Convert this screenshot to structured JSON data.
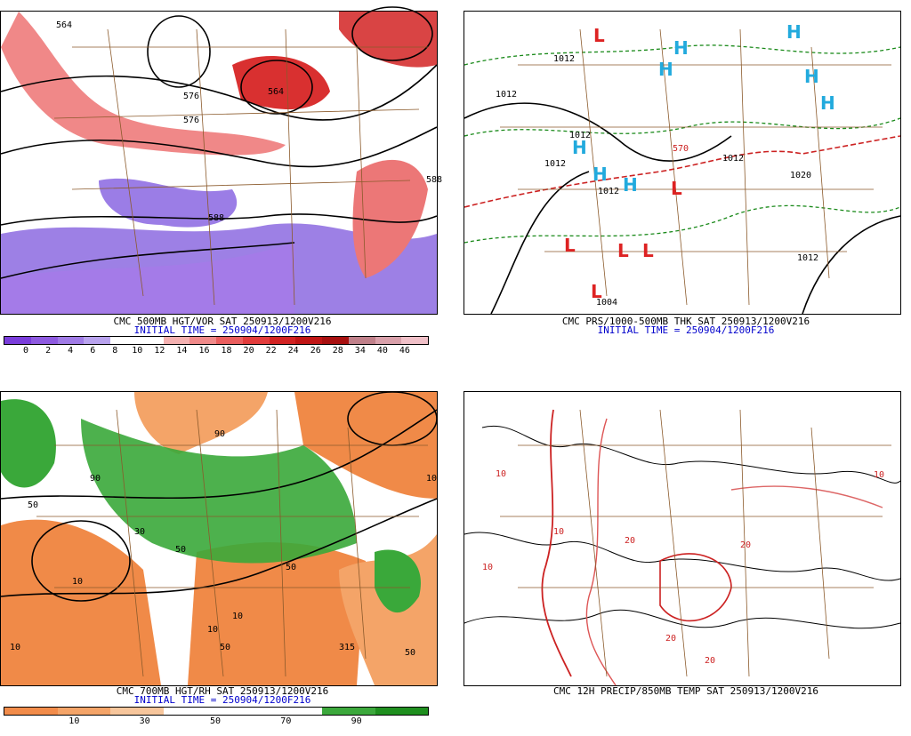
{
  "panels": [
    {
      "title": "CMC 500MB HGT/VOR SAT 250913/1200V216",
      "initial": "INITIAL TIME = 250904/1200F216",
      "colorbar": {
        "colors": [
          "#7a3ddb",
          "#8e5ae0",
          "#a07be6",
          "#b9a3ee",
          "#ffffff",
          "#ffffff",
          "#f4b1b1",
          "#f08a8a",
          "#ea5e5e",
          "#e23c3c",
          "#d22323",
          "#c01515",
          "#a81010",
          "#c0808a",
          "#d9a0aa",
          "#f0c0c8"
        ],
        "labels": [
          "0",
          "2",
          "4",
          "6",
          "8",
          "10",
          "12",
          "14",
          "16",
          "18",
          "20",
          "22",
          "24",
          "26",
          "28",
          "34",
          "40",
          "46"
        ]
      },
      "contour_labels": [
        "564",
        "576",
        "576",
        "564",
        "588",
        "588"
      ]
    },
    {
      "title": "CMC PRS/1000-500MB THK SAT 250913/1200V216",
      "initial": "INITIAL TIME = 250904/1200F216",
      "pressure_labels": [
        "1012",
        "1012",
        "1012",
        "1012",
        "1012",
        "1012",
        "1020",
        "1004",
        "1012",
        "570"
      ],
      "centers": [
        "L",
        "H",
        "H",
        "H",
        "H",
        "H",
        "H",
        "H",
        "H",
        "L",
        "L",
        "L",
        "L",
        "L"
      ]
    },
    {
      "title": "CMC 700MB HGT/RH SAT 250913/1200V216",
      "initial": "INITIAL TIME = 250904/1200F216",
      "colorbar": {
        "colors": [
          "#f28c4a",
          "#f4a468",
          "#f7c69c",
          "#ffffff",
          "#ffffff",
          "#ffffff",
          "#3ca83c",
          "#1f8f1f"
        ],
        "labels": [
          "10",
          "30",
          "50",
          "70",
          "90"
        ]
      },
      "contour_labels": [
        "10",
        "50",
        "90",
        "30",
        "10",
        "50",
        "90",
        "50",
        "10",
        "10",
        "315",
        "50",
        "10",
        "50"
      ]
    },
    {
      "title": "CMC 12H PRECIP/850MB TEMP SAT 250913/1200V216",
      "initial": "",
      "temp_labels": [
        "10",
        "10",
        "20",
        "20",
        "10",
        "20",
        "10",
        "20"
      ]
    }
  ]
}
